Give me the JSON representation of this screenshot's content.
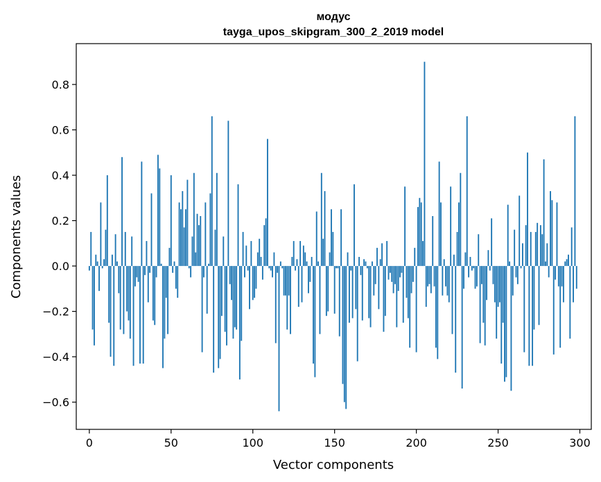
{
  "chart_data": {
    "type": "bar",
    "title": "модус",
    "subtitle": "tayga_upos_skipgram_300_2_2019 model",
    "xlabel": "Vector components",
    "ylabel": "Components values",
    "xlim": [
      -8,
      307
    ],
    "ylim": [
      -0.72,
      0.98
    ],
    "xticks": [
      0,
      50,
      100,
      150,
      200,
      250,
      300
    ],
    "yticks": [
      -0.6,
      -0.4,
      -0.2,
      0.0,
      0.2,
      0.4,
      0.6,
      0.8
    ],
    "ytick_labels": [
      "−0.6",
      "−0.4",
      "−0.2",
      "0.0",
      "0.2",
      "0.4",
      "0.6",
      "0.8"
    ],
    "bar_color": "#1f77b4",
    "values": [
      -0.02,
      0.15,
      -0.28,
      -0.35,
      0.05,
      0.02,
      -0.11,
      0.28,
      -0.01,
      0.03,
      0.16,
      0.4,
      -0.25,
      -0.4,
      0.05,
      -0.44,
      0.14,
      0.02,
      -0.12,
      -0.28,
      0.48,
      -0.3,
      0.15,
      -0.2,
      -0.24,
      -0.32,
      0.13,
      -0.44,
      -0.09,
      -0.05,
      -0.07,
      -0.43,
      0.46,
      -0.43,
      -0.04,
      0.11,
      -0.16,
      -0.03,
      0.32,
      -0.24,
      -0.26,
      -0.05,
      0.49,
      0.43,
      0.01,
      -0.45,
      -0.32,
      -0.14,
      -0.3,
      0.08,
      0.4,
      -0.03,
      0.02,
      -0.1,
      -0.14,
      0.28,
      0.25,
      0.33,
      0.17,
      0.25,
      0.38,
      -0.01,
      -0.05,
      0.13,
      0.41,
      0.06,
      0.23,
      0.18,
      0.22,
      -0.38,
      -0.05,
      0.28,
      -0.21,
      0.01,
      0.32,
      0.66,
      -0.47,
      0.16,
      0.41,
      -0.45,
      -0.41,
      -0.22,
      0.13,
      -0.29,
      -0.35,
      0.64,
      -0.08,
      -0.15,
      -0.32,
      -0.27,
      -0.28,
      0.36,
      -0.5,
      -0.33,
      0.15,
      -0.05,
      0.09,
      -0.02,
      -0.19,
      0.11,
      -0.15,
      -0.14,
      -0.1,
      0.06,
      0.12,
      0.04,
      -0.06,
      0.18,
      0.21,
      0.56,
      -0.01,
      -0.02,
      -0.05,
      0.06,
      -0.34,
      -0.03,
      -0.64,
      0.02,
      -0.01,
      -0.13,
      -0.13,
      -0.28,
      -0.13,
      -0.3,
      0.04,
      0.11,
      -0.02,
      0.03,
      -0.18,
      0.11,
      -0.16,
      0.09,
      0.06,
      0.02,
      -0.12,
      -0.07,
      0.04,
      -0.43,
      -0.49,
      0.24,
      0.02,
      -0.3,
      0.41,
      0.12,
      0.33,
      -0.22,
      -0.2,
      0.06,
      0.25,
      0.15,
      -0.21,
      -0.01,
      -0.01,
      -0.31,
      0.25,
      -0.52,
      -0.6,
      -0.63,
      0.06,
      -0.25,
      -0.02,
      -0.23,
      0.36,
      -0.19,
      -0.42,
      0.04,
      -0.04,
      -0.24,
      0.03,
      0.02,
      -0.01,
      -0.23,
      -0.27,
      0.02,
      -0.13,
      -0.08,
      0.08,
      -0.19,
      0.03,
      0.1,
      -0.29,
      -0.22,
      0.11,
      -0.06,
      -0.03,
      -0.07,
      -0.12,
      -0.08,
      -0.27,
      -0.11,
      -0.05,
      -0.03,
      -0.25,
      0.35,
      -0.14,
      -0.23,
      -0.36,
      -0.12,
      -0.07,
      0.08,
      -0.38,
      0.26,
      0.3,
      0.28,
      0.11,
      0.9,
      -0.18,
      -0.09,
      -0.08,
      -0.12,
      0.22,
      -0.09,
      -0.36,
      -0.41,
      0.46,
      0.28,
      -0.13,
      0.03,
      -0.09,
      -0.13,
      -0.16,
      0.35,
      -0.3,
      0.05,
      -0.47,
      0.15,
      0.28,
      0.41,
      -0.54,
      -0.1,
      0.06,
      0.66,
      -0.05,
      0.04,
      -0.02,
      -0.01,
      -0.1,
      -0.09,
      0.14,
      -0.34,
      -0.08,
      -0.25,
      -0.35,
      -0.15,
      0.07,
      -0.02,
      0.21,
      -0.08,
      -0.16,
      -0.32,
      -0.18,
      -0.16,
      -0.43,
      -0.25,
      -0.51,
      -0.49,
      0.27,
      0.02,
      -0.55,
      -0.13,
      0.16,
      -0.05,
      -0.08,
      0.31,
      -0.01,
      0.1,
      -0.38,
      0.18,
      0.5,
      -0.44,
      0.15,
      -0.44,
      -0.28,
      0.15,
      0.19,
      -0.26,
      0.18,
      0.14,
      0.47,
      0.02,
      0.1,
      -0.05,
      0.33,
      0.29,
      -0.39,
      -0.06,
      0.28,
      -0.09,
      -0.36,
      -0.09,
      -0.16,
      0.02,
      0.03,
      0.05,
      -0.32,
      0.17,
      -0.16,
      0.66,
      -0.1
    ]
  }
}
